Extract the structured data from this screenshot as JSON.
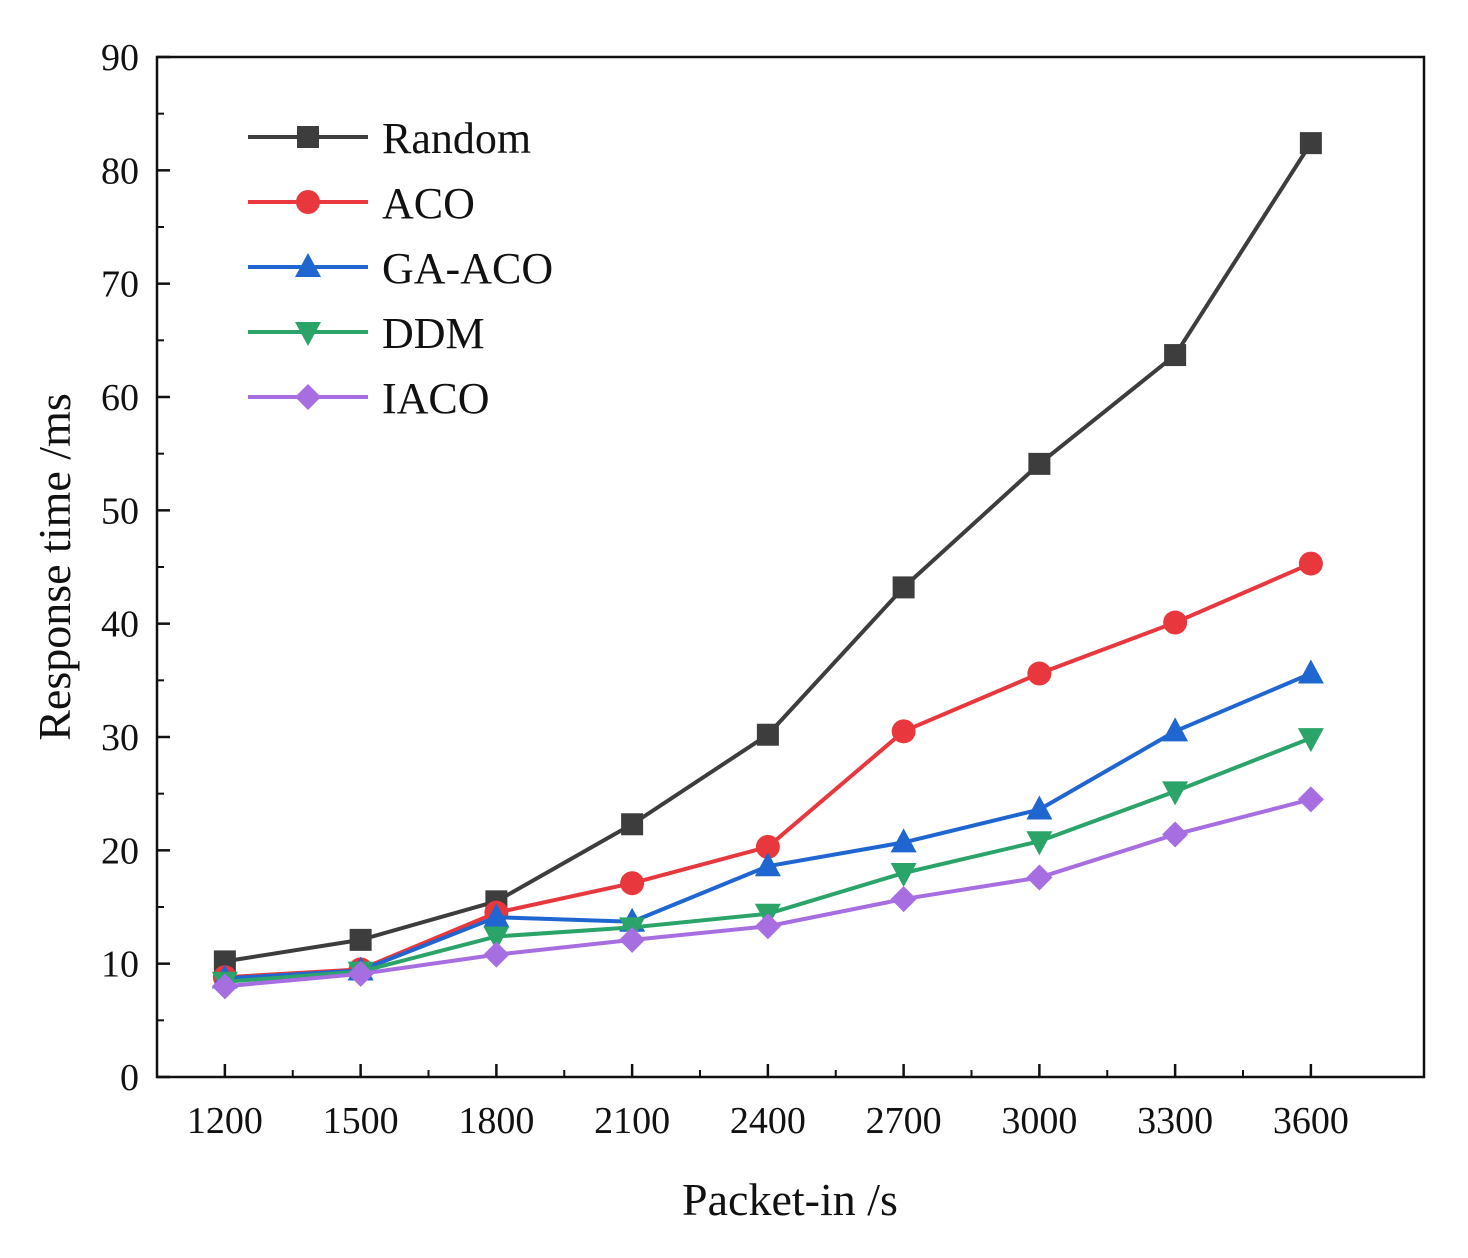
{
  "chart_data": {
    "type": "line",
    "title": "",
    "xlabel": "Packet-in /s",
    "ylabel": "Response time /ms",
    "x": [
      1200,
      1500,
      1800,
      2100,
      2400,
      2700,
      3000,
      3300,
      3600
    ],
    "xticks": [
      "1200",
      "1500",
      "1800",
      "2100",
      "2400",
      "2700",
      "3000",
      "3300",
      "3600"
    ],
    "yticks": [
      "0",
      "10",
      "20",
      "30",
      "40",
      "50",
      "60",
      "70",
      "80",
      "90"
    ],
    "xlim": [
      1050,
      3850
    ],
    "ylim": [
      0,
      90
    ],
    "grid": false,
    "legend_position": "top-left",
    "series": [
      {
        "name": "Random",
        "marker": "square",
        "color": "#3d3d3d",
        "values": [
          10.2,
          12.1,
          15.5,
          22.3,
          30.2,
          43.2,
          54.1,
          63.7,
          82.4
        ]
      },
      {
        "name": "ACO",
        "marker": "circle",
        "color": "#e8383d",
        "values": [
          8.8,
          9.5,
          14.5,
          17.1,
          20.3,
          30.5,
          35.6,
          40.1,
          45.3
        ]
      },
      {
        "name": "GA-ACO",
        "marker": "triangle-up",
        "color": "#1f66d1",
        "values": [
          8.7,
          9.4,
          14.1,
          13.7,
          18.6,
          20.7,
          23.6,
          30.5,
          35.6
        ]
      },
      {
        "name": "DDM",
        "marker": "triangle-down",
        "color": "#2ba46a",
        "values": [
          8.4,
          9.3,
          12.4,
          13.2,
          14.4,
          18.0,
          20.8,
          25.2,
          29.9
        ]
      },
      {
        "name": "IACO",
        "marker": "diamond",
        "color": "#a66ee0",
        "values": [
          8.0,
          9.1,
          10.8,
          12.1,
          13.3,
          15.7,
          17.6,
          21.4,
          24.5
        ]
      }
    ]
  }
}
